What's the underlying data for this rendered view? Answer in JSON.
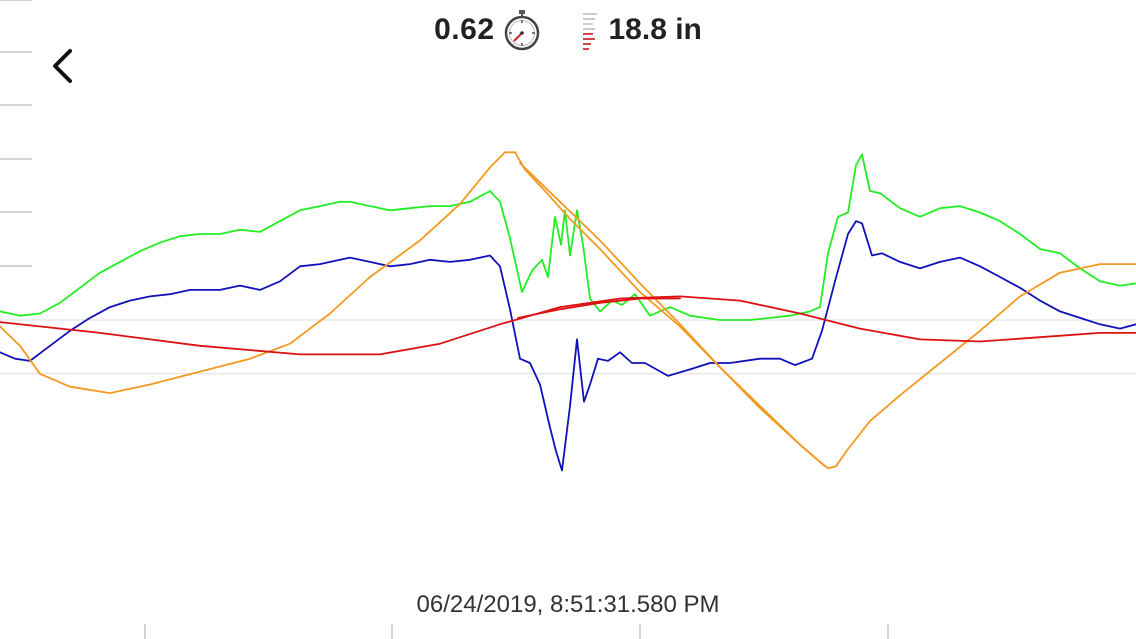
{
  "header": {
    "time_value": "0.62",
    "depth_value": "18.8 in"
  },
  "icons": {
    "time": "stopwatch-icon",
    "depth": "depth-ladder-icon",
    "back": "chevron-left-icon"
  },
  "footer": {
    "timestamp": "06/24/2019, 8:51:31.580 PM"
  },
  "colors": {
    "green": "#22ee22",
    "blue": "#1111bb",
    "orange": "#f29a1f",
    "red": "#dd1111",
    "grid": "#dddddd",
    "tick": "#aaaaaa"
  },
  "chart_data": {
    "type": "line",
    "xlim": [
      0,
      1136
    ],
    "ylim": [
      -1,
      1
    ],
    "grid": true,
    "series": [
      {
        "key": "green",
        "points": [
          [
            0,
            0.04
          ],
          [
            20,
            0.02
          ],
          [
            40,
            0.03
          ],
          [
            60,
            0.08
          ],
          [
            80,
            0.15
          ],
          [
            100,
            0.22
          ],
          [
            120,
            0.27
          ],
          [
            140,
            0.32
          ],
          [
            160,
            0.36
          ],
          [
            180,
            0.39
          ],
          [
            200,
            0.4
          ],
          [
            220,
            0.4
          ],
          [
            240,
            0.42
          ],
          [
            260,
            0.41
          ],
          [
            280,
            0.46
          ],
          [
            300,
            0.51
          ],
          [
            320,
            0.53
          ],
          [
            340,
            0.55
          ],
          [
            350,
            0.55
          ],
          [
            370,
            0.53
          ],
          [
            390,
            0.51
          ],
          [
            410,
            0.52
          ],
          [
            430,
            0.53
          ],
          [
            450,
            0.53
          ],
          [
            470,
            0.55
          ],
          [
            490,
            0.6
          ],
          [
            500,
            0.55
          ],
          [
            510,
            0.38
          ],
          [
            522,
            0.13
          ],
          [
            532,
            0.23
          ],
          [
            542,
            0.28
          ],
          [
            548,
            0.2
          ],
          [
            555,
            0.48
          ],
          [
            561,
            0.35
          ],
          [
            565,
            0.51
          ],
          [
            570,
            0.3
          ],
          [
            577,
            0.51
          ],
          [
            583,
            0.35
          ],
          [
            590,
            0.1
          ],
          [
            600,
            0.04
          ],
          [
            612,
            0.09
          ],
          [
            622,
            0.07
          ],
          [
            635,
            0.12
          ],
          [
            650,
            0.02
          ],
          [
            670,
            0.06
          ],
          [
            690,
            0.02
          ],
          [
            720,
            0.0
          ],
          [
            750,
            0.0
          ],
          [
            770,
            0.01
          ],
          [
            790,
            0.02
          ],
          [
            810,
            0.04
          ],
          [
            820,
            0.06
          ],
          [
            828,
            0.31
          ],
          [
            838,
            0.48
          ],
          [
            848,
            0.5
          ],
          [
            856,
            0.72
          ],
          [
            862,
            0.77
          ],
          [
            870,
            0.6
          ],
          [
            880,
            0.59
          ],
          [
            900,
            0.52
          ],
          [
            920,
            0.48
          ],
          [
            940,
            0.52
          ],
          [
            960,
            0.53
          ],
          [
            980,
            0.5
          ],
          [
            1000,
            0.46
          ],
          [
            1020,
            0.4
          ],
          [
            1040,
            0.33
          ],
          [
            1060,
            0.31
          ],
          [
            1080,
            0.24
          ],
          [
            1100,
            0.18
          ],
          [
            1120,
            0.16
          ],
          [
            1136,
            0.17
          ]
        ]
      },
      {
        "key": "blue",
        "points": [
          [
            0,
            -0.15
          ],
          [
            15,
            -0.18
          ],
          [
            30,
            -0.19
          ],
          [
            50,
            -0.12
          ],
          [
            70,
            -0.05
          ],
          [
            90,
            0.01
          ],
          [
            110,
            0.06
          ],
          [
            130,
            0.09
          ],
          [
            150,
            0.11
          ],
          [
            170,
            0.12
          ],
          [
            190,
            0.14
          ],
          [
            220,
            0.14
          ],
          [
            240,
            0.16
          ],
          [
            260,
            0.14
          ],
          [
            280,
            0.18
          ],
          [
            300,
            0.25
          ],
          [
            320,
            0.26
          ],
          [
            340,
            0.28
          ],
          [
            350,
            0.29
          ],
          [
            370,
            0.27
          ],
          [
            390,
            0.25
          ],
          [
            410,
            0.26
          ],
          [
            430,
            0.28
          ],
          [
            450,
            0.27
          ],
          [
            470,
            0.28
          ],
          [
            490,
            0.3
          ],
          [
            500,
            0.25
          ],
          [
            510,
            0.05
          ],
          [
            520,
            -0.18
          ],
          [
            530,
            -0.2
          ],
          [
            540,
            -0.3
          ],
          [
            550,
            -0.5
          ],
          [
            556,
            -0.61
          ],
          [
            562,
            -0.7
          ],
          [
            570,
            -0.4
          ],
          [
            577,
            -0.09
          ],
          [
            584,
            -0.38
          ],
          [
            590,
            -0.3
          ],
          [
            598,
            -0.18
          ],
          [
            608,
            -0.19
          ],
          [
            620,
            -0.15
          ],
          [
            632,
            -0.2
          ],
          [
            645,
            -0.2
          ],
          [
            668,
            -0.26
          ],
          [
            690,
            -0.23
          ],
          [
            710,
            -0.2
          ],
          [
            730,
            -0.2
          ],
          [
            760,
            -0.18
          ],
          [
            780,
            -0.18
          ],
          [
            795,
            -0.21
          ],
          [
            812,
            -0.18
          ],
          [
            822,
            -0.05
          ],
          [
            835,
            0.18
          ],
          [
            848,
            0.4
          ],
          [
            856,
            0.46
          ],
          [
            862,
            0.45
          ],
          [
            872,
            0.3
          ],
          [
            882,
            0.31
          ],
          [
            900,
            0.27
          ],
          [
            920,
            0.24
          ],
          [
            940,
            0.27
          ],
          [
            960,
            0.29
          ],
          [
            980,
            0.25
          ],
          [
            1000,
            0.2
          ],
          [
            1020,
            0.15
          ],
          [
            1040,
            0.09
          ],
          [
            1060,
            0.04
          ],
          [
            1080,
            0.01
          ],
          [
            1100,
            -0.02
          ],
          [
            1120,
            -0.04
          ],
          [
            1136,
            -0.02
          ]
        ]
      },
      {
        "key": "orange",
        "points": [
          [
            0,
            -0.03
          ],
          [
            20,
            -0.12
          ],
          [
            40,
            -0.25
          ],
          [
            70,
            -0.31
          ],
          [
            110,
            -0.34
          ],
          [
            150,
            -0.3
          ],
          [
            200,
            -0.24
          ],
          [
            250,
            -0.18
          ],
          [
            290,
            -0.11
          ],
          [
            330,
            0.03
          ],
          [
            370,
            0.2
          ],
          [
            420,
            0.37
          ],
          [
            460,
            0.54
          ],
          [
            490,
            0.71
          ],
          [
            505,
            0.78
          ],
          [
            515,
            0.78
          ],
          [
            525,
            0.7
          ],
          [
            545,
            0.6
          ],
          [
            570,
            0.47
          ],
          [
            600,
            0.33
          ],
          [
            640,
            0.13
          ],
          [
            680,
            -0.03
          ],
          [
            720,
            -0.22
          ],
          [
            760,
            -0.4
          ],
          [
            800,
            -0.58
          ],
          [
            820,
            -0.66
          ],
          [
            828,
            -0.69
          ],
          [
            836,
            -0.68
          ],
          [
            848,
            -0.6
          ],
          [
            870,
            -0.47
          ],
          [
            900,
            -0.35
          ],
          [
            940,
            -0.2
          ],
          [
            980,
            -0.05
          ],
          [
            1020,
            0.11
          ],
          [
            1060,
            0.22
          ],
          [
            1100,
            0.26
          ],
          [
            1136,
            0.26
          ]
        ]
      },
      {
        "key": "orange",
        "points": [
          [
            520,
            0.73
          ],
          [
            560,
            0.55
          ],
          [
            600,
            0.37
          ],
          [
            640,
            0.17
          ],
          [
            680,
            -0.02
          ],
          [
            720,
            -0.22
          ],
          [
            760,
            -0.41
          ],
          [
            800,
            -0.58
          ],
          [
            825,
            -0.68
          ]
        ]
      },
      {
        "key": "red",
        "points": [
          [
            0,
            -0.01
          ],
          [
            100,
            -0.06
          ],
          [
            200,
            -0.12
          ],
          [
            300,
            -0.16
          ],
          [
            380,
            -0.16
          ],
          [
            440,
            -0.11
          ],
          [
            500,
            -0.02
          ],
          [
            560,
            0.06
          ],
          [
            620,
            0.1
          ],
          [
            680,
            0.11
          ],
          [
            740,
            0.09
          ],
          [
            800,
            0.03
          ],
          [
            860,
            -0.04
          ],
          [
            920,
            -0.09
          ],
          [
            980,
            -0.1
          ],
          [
            1040,
            -0.08
          ],
          [
            1100,
            -0.06
          ],
          [
            1136,
            -0.06
          ]
        ]
      },
      {
        "key": "red",
        "points": [
          [
            518,
            0.01
          ],
          [
            560,
            0.05
          ],
          [
            600,
            0.08
          ],
          [
            640,
            0.1
          ],
          [
            680,
            0.1
          ]
        ]
      }
    ]
  }
}
